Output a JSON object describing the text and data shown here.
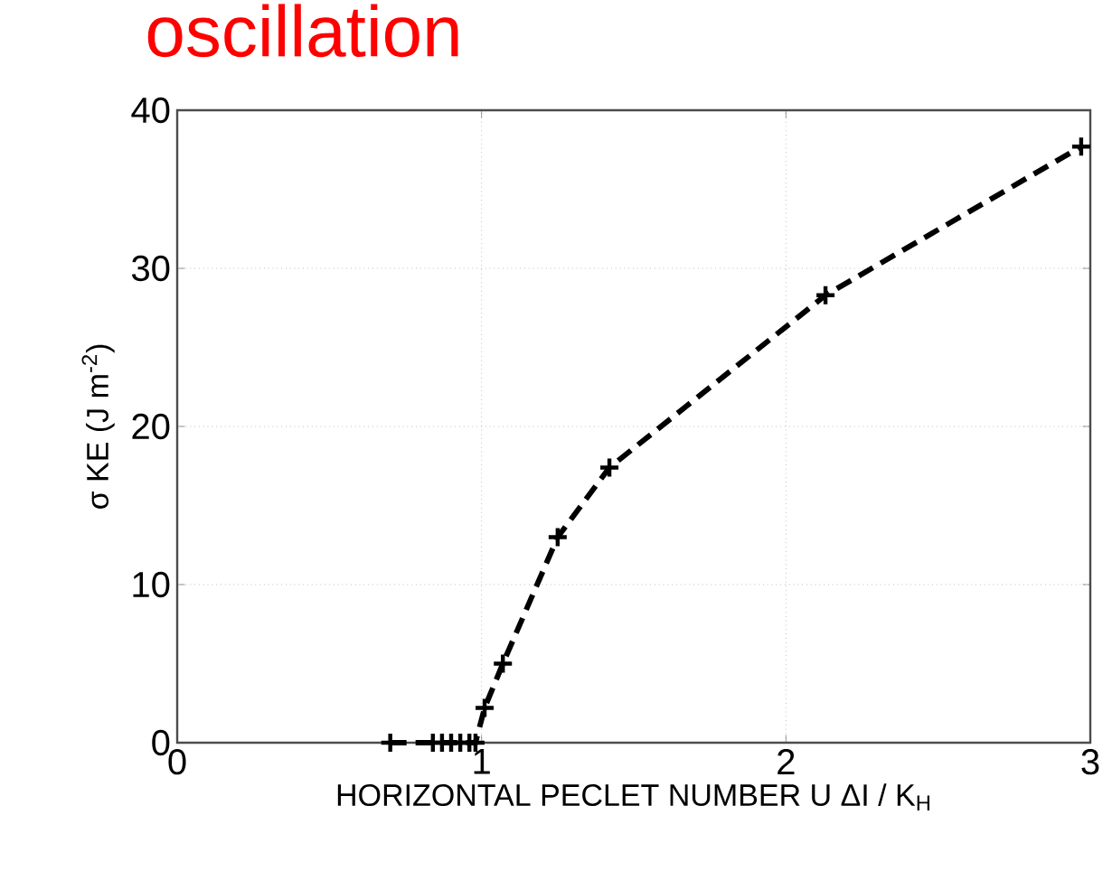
{
  "chart_data": {
    "type": "line",
    "title": "oscillation",
    "xlabel": "HORIZONTAL PECLET NUMBER  U ΔI / K$_{H}$",
    "ylabel": "σ KE  (J m$^{-2}$)",
    "xlim": [
      0,
      3
    ],
    "ylim": [
      0,
      40
    ],
    "xticks": [
      0,
      1,
      2,
      3
    ],
    "yticks": [
      0,
      10,
      20,
      30,
      40
    ],
    "grid": true,
    "series": [
      {
        "color": "#000000",
        "line_style": "dashed",
        "marker": "cross",
        "x": [
          0.7,
          0.84,
          0.87,
          0.9,
          0.93,
          0.96,
          0.98,
          1.01,
          1.07,
          1.25,
          1.42,
          2.13,
          2.97
        ],
        "values": [
          0,
          0,
          0,
          0,
          0,
          0,
          0,
          2.2,
          5.0,
          13.0,
          17.4,
          28.3,
          37.7
        ]
      }
    ]
  }
}
